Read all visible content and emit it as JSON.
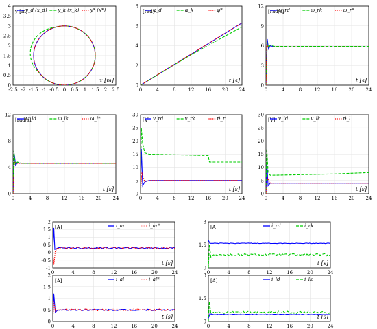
{
  "chart_data": [
    {
      "type": "line",
      "xlabel": "x [m]",
      "ylabel": "y [m]",
      "xlim": [
        -2.5,
        2.5
      ],
      "ylim": [
        0,
        4
      ],
      "xticks": [
        "-2.5",
        "-2",
        "-1.5",
        "-1",
        "-0.5",
        "0",
        "0.5",
        "1",
        "1.5",
        "2",
        "2.5"
      ],
      "yticks": [
        "0",
        "0.5",
        "1",
        "1.5",
        "2",
        "2.5",
        "3",
        "3.5",
        "4"
      ],
      "grid": true,
      "legend": "top",
      "series": [
        {
          "name": "y_d (x_d)",
          "color": "#0000ff",
          "style": "solid",
          "kind": "circle",
          "cx": 0,
          "cy": 1.5,
          "r": 1.5
        },
        {
          "name": "y_k (x_k)",
          "color": "#00cc00",
          "style": "dashed",
          "kind": "circle_start",
          "cx": 0,
          "cy": 1.5,
          "r": 1.5
        },
        {
          "name": "y* (x*)",
          "color": "#ff0000",
          "style": "dotted",
          "kind": "circle",
          "cx": 0,
          "cy": 1.5,
          "r": 1.5
        }
      ]
    },
    {
      "type": "line",
      "xlabel": "t [s]",
      "ylabel": "[rad]",
      "xlim": [
        0,
        24
      ],
      "ylim": [
        0,
        8
      ],
      "xticks": [
        "0",
        "4",
        "8",
        "12",
        "16",
        "20",
        "24"
      ],
      "yticks": [
        "0",
        "2",
        "4",
        "6",
        "8"
      ],
      "grid": true,
      "legend": "top",
      "series": [
        {
          "name": "φ_d",
          "color": "#0000ff",
          "style": "solid",
          "x": [
            0,
            24
          ],
          "y": [
            0,
            6.3
          ]
        },
        {
          "name": "φ_k",
          "color": "#00cc00",
          "style": "dashed",
          "x": [
            0,
            12,
            24
          ],
          "y": [
            0,
            3.1,
            5.9
          ]
        },
        {
          "name": "φ*",
          "color": "#ff0000",
          "style": "dotted",
          "x": [
            0,
            24
          ],
          "y": [
            0,
            6.3
          ]
        }
      ]
    },
    {
      "type": "line",
      "xlabel": "t [s]",
      "ylabel": "[rad/s]",
      "xlim": [
        0,
        24
      ],
      "ylim": [
        0,
        12
      ],
      "xticks": [
        "0",
        "4",
        "8",
        "12",
        "16",
        "20",
        "24"
      ],
      "yticks": [
        "0",
        "3",
        "6",
        "9",
        "12"
      ],
      "grid": true,
      "legend": "top",
      "series": [
        {
          "name": "ω_rd",
          "color": "#0000ff",
          "style": "solid",
          "x": [
            0,
            0.3,
            0.6,
            1,
            2,
            24
          ],
          "y": [
            0,
            7,
            5.5,
            6,
            5.8,
            5.8
          ]
        },
        {
          "name": "ω_rk",
          "color": "#00cc00",
          "style": "dashed",
          "x": [
            0,
            0.3,
            0.6,
            1,
            2,
            24
          ],
          "y": [
            0,
            6.5,
            5.7,
            6.1,
            5.9,
            5.9
          ]
        },
        {
          "name": "ω_r*",
          "color": "#ff0000",
          "style": "dotted",
          "x": [
            0,
            0.2,
            0.5,
            1,
            24
          ],
          "y": [
            0,
            6.2,
            5.8,
            5.8,
            5.8
          ]
        }
      ]
    },
    {
      "type": "line",
      "xlabel": "t [s]",
      "ylabel": "[rad/s]",
      "xlim": [
        0,
        24
      ],
      "ylim": [
        0,
        12
      ],
      "xticks": [
        "0",
        "4",
        "8",
        "12",
        "16",
        "20",
        "24"
      ],
      "yticks": [
        "0",
        "4",
        "8",
        "12"
      ],
      "grid": true,
      "legend": "top",
      "series": [
        {
          "name": "ω_ld",
          "color": "#0000ff",
          "style": "solid",
          "x": [
            0,
            0.3,
            0.6,
            1,
            2,
            24
          ],
          "y": [
            0,
            6,
            4.3,
            4.7,
            4.6,
            4.6
          ]
        },
        {
          "name": "ω_lk",
          "color": "#00cc00",
          "style": "dashed",
          "x": [
            0,
            0.2,
            0.5,
            1,
            2,
            24
          ],
          "y": [
            0,
            6.5,
            4.5,
            4.8,
            4.6,
            4.6
          ]
        },
        {
          "name": "ω_l*",
          "color": "#ff0000",
          "style": "dotted",
          "x": [
            0,
            0.3,
            1,
            24
          ],
          "y": [
            0,
            4.8,
            4.6,
            4.6
          ]
        }
      ]
    },
    {
      "type": "line",
      "xlabel": "t [s]",
      "ylabel": "[V]",
      "xlim": [
        0,
        24
      ],
      "ylim": [
        0,
        30
      ],
      "xticks": [
        "0",
        "4",
        "8",
        "12",
        "16",
        "20",
        "24"
      ],
      "yticks": [
        "0",
        "5",
        "10",
        "15",
        "20",
        "25",
        "30"
      ],
      "grid": true,
      "legend": "top",
      "series": [
        {
          "name": "v_rd",
          "color": "#0000ff",
          "style": "solid",
          "x": [
            0,
            0.2,
            0.5,
            1,
            2,
            24
          ],
          "y": [
            0,
            17,
            3,
            4.5,
            5,
            5
          ]
        },
        {
          "name": "v_rk",
          "color": "#00cc00",
          "style": "dashed",
          "x": [
            0,
            0.2,
            0.5,
            1,
            2,
            16,
            16.3,
            24
          ],
          "y": [
            0,
            25,
            19,
            15.5,
            15,
            14.5,
            12,
            12
          ]
        },
        {
          "name": "ϑ_r",
          "color": "#ff0000",
          "style": "dotted",
          "x": [
            0,
            0.3,
            1,
            2,
            24
          ],
          "y": [
            0,
            8,
            4.5,
            5,
            5
          ]
        }
      ]
    },
    {
      "type": "line",
      "xlabel": "t [s]",
      "ylabel": "[V]",
      "xlim": [
        0,
        24
      ],
      "ylim": [
        0,
        30
      ],
      "xticks": [
        "0",
        "4",
        "8",
        "12",
        "16",
        "20",
        "24"
      ],
      "yticks": [
        "0",
        "5",
        "10",
        "15",
        "20",
        "25",
        "30"
      ],
      "grid": true,
      "legend": "top",
      "series": [
        {
          "name": "v_ld",
          "color": "#0000ff",
          "style": "solid",
          "x": [
            0,
            0.2,
            0.5,
            1,
            2,
            24
          ],
          "y": [
            0,
            12,
            3,
            4,
            4,
            4
          ]
        },
        {
          "name": "v_lk",
          "color": "#00cc00",
          "style": "dashed",
          "x": [
            0,
            0.2,
            0.5,
            1,
            16,
            24
          ],
          "y": [
            0,
            17,
            8,
            7,
            7.5,
            8
          ]
        },
        {
          "name": "ϑ_l",
          "color": "#ff0000",
          "style": "dotted",
          "x": [
            0,
            0.3,
            1,
            24
          ],
          "y": [
            0,
            6,
            4,
            4
          ]
        }
      ]
    },
    {
      "type": "line",
      "xlabel": "t [s]",
      "ylabel": "[A]",
      "xlim": [
        0,
        24
      ],
      "ylim": [
        -1,
        2
      ],
      "xticks": [
        "0",
        "4",
        "8",
        "12",
        "16",
        "20",
        "24"
      ],
      "yticks": [
        "-1",
        "-0.5",
        "0",
        "0.5",
        "1",
        "1.5",
        "2"
      ],
      "grid": true,
      "legend": "top",
      "series": [
        {
          "name": "i_ar",
          "color": "#0000ff",
          "style": "solid",
          "x": [
            0,
            0.2,
            0.4,
            1,
            24
          ],
          "y": [
            0,
            1.6,
            0.2,
            0.3,
            0.3
          ],
          "noise": 0.05
        },
        {
          "name": "i_ar*",
          "color": "#ff0000",
          "style": "dotted",
          "x": [
            0,
            0.2,
            0.5,
            1,
            24
          ],
          "y": [
            0,
            -0.8,
            0.1,
            0.3,
            0.3
          ],
          "noise": 0.06
        }
      ]
    },
    {
      "type": "line",
      "xlabel": "t [s]",
      "ylabel": "[A]",
      "xlim": [
        0,
        24
      ],
      "ylim": [
        0,
        3
      ],
      "xticks": [
        "0",
        "4",
        "8",
        "12",
        "16",
        "20",
        "24"
      ],
      "yticks": [
        "0",
        "1.5",
        "3"
      ],
      "grid": true,
      "legend": "top",
      "series": [
        {
          "name": "i_rd",
          "color": "#0000ff",
          "style": "solid",
          "x": [
            0,
            0.3,
            1,
            24
          ],
          "y": [
            1.8,
            1.6,
            1.6,
            1.6
          ],
          "noise": 0.02
        },
        {
          "name": "i_rk",
          "color": "#00cc00",
          "style": "dashed",
          "x": [
            0,
            0.2,
            0.5,
            1,
            24
          ],
          "y": [
            0,
            1.5,
            0.7,
            0.85,
            0.85
          ],
          "noise": 0.07
        }
      ]
    },
    {
      "type": "line",
      "xlabel": "t [s]",
      "ylabel": "[A]",
      "xlim": [
        0,
        24
      ],
      "ylim": [
        0,
        2
      ],
      "xticks": [
        "0",
        "4",
        "8",
        "12",
        "16",
        "20",
        "24"
      ],
      "yticks": [
        "0",
        "0.5",
        "1",
        "1.5",
        "2"
      ],
      "grid": true,
      "legend": "top",
      "series": [
        {
          "name": "i_al",
          "color": "#0000ff",
          "style": "solid",
          "x": [
            0,
            0.2,
            0.5,
            1,
            24
          ],
          "y": [
            0,
            1.2,
            0.4,
            0.5,
            0.5
          ],
          "noise": 0.03
        },
        {
          "name": "i_al*",
          "color": "#ff0000",
          "style": "dotted",
          "x": [
            0,
            0.2,
            0.5,
            1,
            24
          ],
          "y": [
            0,
            0.9,
            0.45,
            0.5,
            0.5
          ],
          "noise": 0.04
        }
      ]
    },
    {
      "type": "line",
      "xlabel": "t [s]",
      "ylabel": "[A]",
      "xlim": [
        0,
        24
      ],
      "ylim": [
        0,
        3
      ],
      "xticks": [
        "0",
        "4",
        "8",
        "12",
        "16",
        "20",
        "24"
      ],
      "yticks": [
        "0",
        "1.5",
        "3"
      ],
      "grid": true,
      "legend": "top",
      "series": [
        {
          "name": "i_ld",
          "color": "#0000ff",
          "style": "solid",
          "x": [
            0,
            0.3,
            1,
            24
          ],
          "y": [
            0.2,
            0.5,
            0.45,
            0.45
          ],
          "noise": 0.02
        },
        {
          "name": "i_lk",
          "color": "#00cc00",
          "style": "dashed",
          "x": [
            0,
            0.2,
            0.5,
            1,
            24
          ],
          "y": [
            0,
            1.3,
            0.5,
            0.6,
            0.6
          ],
          "noise": 0.07
        }
      ]
    }
  ]
}
